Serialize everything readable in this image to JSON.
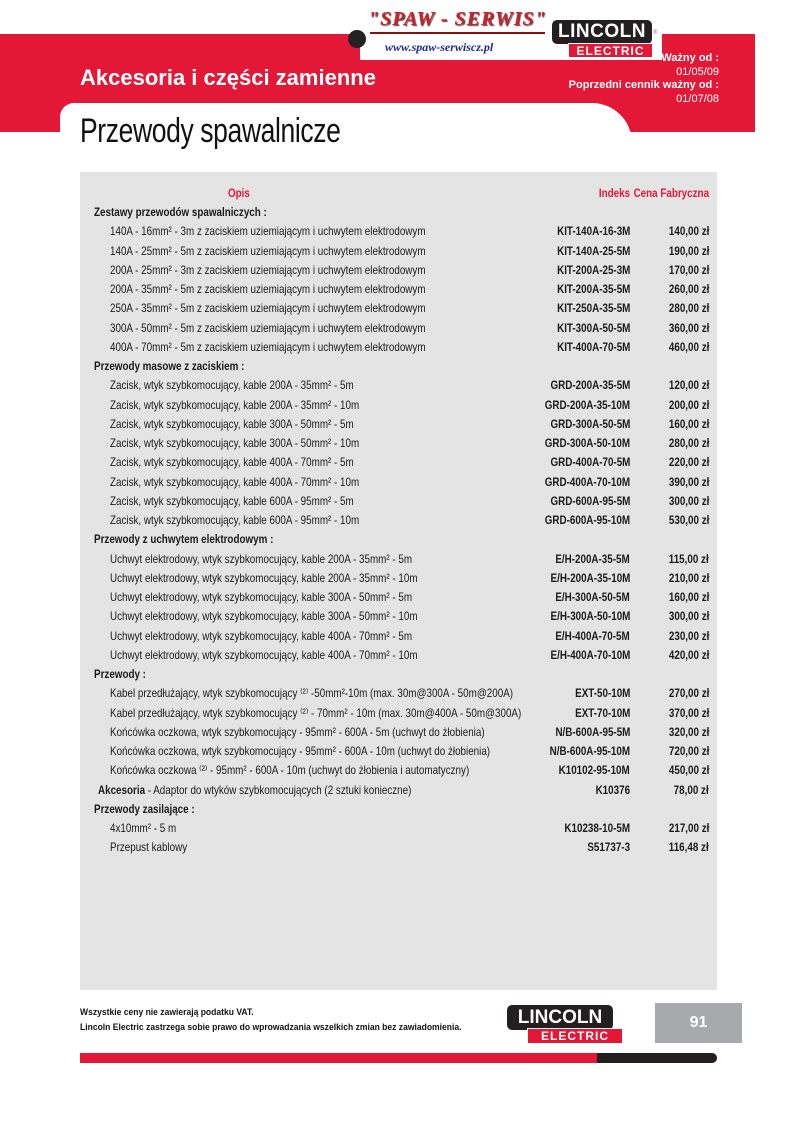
{
  "header": {
    "company": "\"SPAW - SERWIS\"",
    "url": "www.spaw-serwiscz.pl",
    "brand_top": "LINCOLN",
    "brand_bottom": "ELECTRIC",
    "valid_label": "Ważny od :",
    "valid_date": "01/05/09",
    "prev_label": "Poprzedni cennik ważny od :",
    "prev_date": "01/07/08",
    "section": "Akcesoria i części zamienne",
    "title": "Przewody spawalnicze"
  },
  "colors": {
    "brand_red": "#e31837",
    "dark": "#231f20",
    "table_bg": "#e4e4e4"
  },
  "table": {
    "headers": {
      "desc": "Opis",
      "index": "Indeks",
      "price": "Cena Fabryczna"
    },
    "rows": [
      {
        "type": "sec",
        "desc": "Zestawy przewodów spawalniczych :"
      },
      {
        "desc": "140A - 16mm² - 3m z zaciskiem uziemiającym i uchwytem elektrodowym",
        "index": "KIT-140A-16-3M",
        "price": "140,00 zł"
      },
      {
        "desc": "140A - 25mm² - 5m z zaciskiem uziemiającym i uchwytem elektrodowym",
        "index": "KIT-140A-25-5M",
        "price": "190,00 zł"
      },
      {
        "desc": "200A - 25mm² - 3m z zaciskiem uziemiającym i uchwytem elektrodowym",
        "index": "KIT-200A-25-3M",
        "price": "170,00 zł"
      },
      {
        "desc": "200A - 35mm² - 5m z zaciskiem uziemiającym i uchwytem elektrodowym",
        "index": "KIT-200A-35-5M",
        "price": "260,00 zł"
      },
      {
        "desc": "250A - 35mm² - 5m z zaciskiem uziemiającym i uchwytem elektrodowym",
        "index": "KIT-250A-35-5M",
        "price": "280,00 zł"
      },
      {
        "desc": "300A - 50mm² - 5m z zaciskiem uziemiającym i uchwytem elektrodowym",
        "index": "KIT-300A-50-5M",
        "price": "360,00 zł"
      },
      {
        "desc": "400A - 70mm² - 5m z zaciskiem uziemiającym i uchwytem elektrodowym",
        "index": "KIT-400A-70-5M",
        "price": "460,00 zł"
      },
      {
        "type": "sec",
        "desc": "Przewody masowe z zaciskiem :"
      },
      {
        "desc": "Zacisk, wtyk szybkomocujący, kable 200A - 35mm² - 5m",
        "index": "GRD-200A-35-5M",
        "price": "120,00 zł"
      },
      {
        "desc": "Zacisk, wtyk szybkomocujący, kable 200A - 35mm² - 10m",
        "index": "GRD-200A-35-10M",
        "price": "200,00 zł"
      },
      {
        "desc": "Zacisk, wtyk szybkomocujący, kable 300A - 50mm² - 5m",
        "index": "GRD-300A-50-5M",
        "price": "160,00 zł"
      },
      {
        "desc": "Zacisk, wtyk szybkomocujący, kable 300A - 50mm² - 10m",
        "index": "GRD-300A-50-10M",
        "price": "280,00 zł"
      },
      {
        "desc": "Zacisk, wtyk szybkomocujący, kable 400A - 70mm² - 5m",
        "index": "GRD-400A-70-5M",
        "price": "220,00 zł"
      },
      {
        "desc": "Zacisk, wtyk szybkomocujący, kable 400A - 70mm² - 10m",
        "index": "GRD-400A-70-10M",
        "price": "390,00 zł"
      },
      {
        "desc": "Zacisk, wtyk szybkomocujący, kable 600A - 95mm² - 5m",
        "index": "GRD-600A-95-5M",
        "price": "300,00 zł"
      },
      {
        "desc": "Zacisk, wtyk szybkomocujący, kable 600A - 95mm² - 10m",
        "index": "GRD-600A-95-10M",
        "price": "530,00 zł"
      },
      {
        "type": "sec",
        "desc": "Przewody z uchwytem elektrodowym :"
      },
      {
        "desc": "Uchwyt elektrodowy, wtyk szybkomocujący, kable 200A - 35mm² - 5m",
        "index": "E/H-200A-35-5M",
        "price": "115,00 zł"
      },
      {
        "desc": "Uchwyt elektrodowy, wtyk szybkomocujący, kable 200A - 35mm² - 10m",
        "index": "E/H-200A-35-10M",
        "price": "210,00 zł"
      },
      {
        "desc": "Uchwyt elektrodowy, wtyk szybkomocujący, kable 300A - 50mm² - 5m",
        "index": "E/H-300A-50-5M",
        "price": "160,00 zł"
      },
      {
        "desc": "Uchwyt elektrodowy, wtyk szybkomocujący, kable 300A - 50mm² - 10m",
        "index": "E/H-300A-50-10M",
        "price": "300,00 zł"
      },
      {
        "desc": "Uchwyt elektrodowy, wtyk szybkomocujący, kable 400A - 70mm² - 5m",
        "index": "E/H-400A-70-5M",
        "price": "230,00 zł"
      },
      {
        "desc": "Uchwyt elektrodowy, wtyk szybkomocujący, kable 400A - 70mm² - 10m",
        "index": "E/H-400A-70-10M",
        "price": "420,00 zł"
      },
      {
        "type": "sec",
        "desc": "Przewody :"
      },
      {
        "desc": "Kabel przedłużający, wtyk szybkomocujący ⁽²⁾ -50mm²-10m (max. 30m@300A - 50m@200A)",
        "index": "EXT-50-10M",
        "price": "270,00 zł"
      },
      {
        "desc": "Kabel przedłużający, wtyk szybkomocujący ⁽²⁾ - 70mm² - 10m (max. 30m@400A - 50m@300A)",
        "index": "EXT-70-10M",
        "price": "370,00 zł"
      },
      {
        "desc": "Końcówka oczkowa, wtyk szybkomocujący - 95mm² - 600A -  5m (uchwyt do żłobienia)",
        "index": "N/B-600A-95-5M",
        "price": "320,00 zł"
      },
      {
        "desc": "Końcówka oczkowa, wtyk szybkomocujący - 95mm² - 600A -  10m (uchwyt do żłobienia)",
        "index": "N/B-600A-95-10M",
        "price": "720,00 zł"
      },
      {
        "desc": "Końcówka oczkowa ⁽²⁾  - 95mm² - 600A -  10m (uchwyt do żłobienia i automatyczny)",
        "index": "K10102-95-10M",
        "price": "450,00 zł"
      },
      {
        "type": "acc",
        "label": "Akcesoria",
        "desc": " - Adaptor do wtyków szybkomocujących (2 sztuki konieczne)",
        "index": "K10376",
        "price": "78,00 zł"
      },
      {
        "type": "sec",
        "desc": "Przewody zasilające :"
      },
      {
        "desc": "4x10mm² - 5 m",
        "index": "K10238-10-5M",
        "price": "217,00 zł"
      },
      {
        "desc": "Przepust kablowy",
        "index": "S51737-3",
        "price": "116,48 zł"
      }
    ]
  },
  "footer": {
    "line1": "Wszystkie ceny nie zawierają podatku VAT.",
    "line2": "Lincoln Electric zastrzega sobie prawo do wprowadzania wszelkich zmian bez zawiadomienia.",
    "page": "91"
  }
}
